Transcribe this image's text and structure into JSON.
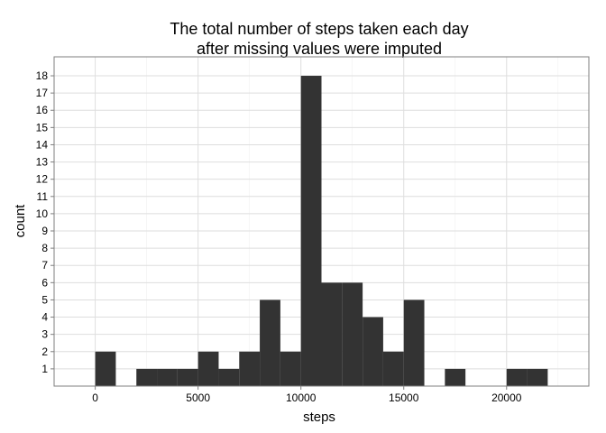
{
  "chart_data": {
    "type": "bar",
    "title": [
      "The total number of steps taken each day",
      "after missing values were imputed"
    ],
    "xlabel": "steps",
    "ylabel": "count",
    "xlim": [
      -2000,
      24000
    ],
    "ylim": [
      0,
      19.1
    ],
    "bin_width": 1000,
    "bins": [
      {
        "x0": 0,
        "count": 2
      },
      {
        "x0": 1000,
        "count": 0
      },
      {
        "x0": 2000,
        "count": 1
      },
      {
        "x0": 3000,
        "count": 1
      },
      {
        "x0": 4000,
        "count": 1
      },
      {
        "x0": 5000,
        "count": 2
      },
      {
        "x0": 6000,
        "count": 1
      },
      {
        "x0": 7000,
        "count": 2
      },
      {
        "x0": 8000,
        "count": 5
      },
      {
        "x0": 9000,
        "count": 2
      },
      {
        "x0": 10000,
        "count": 18
      },
      {
        "x0": 11000,
        "count": 6
      },
      {
        "x0": 12000,
        "count": 6
      },
      {
        "x0": 13000,
        "count": 4
      },
      {
        "x0": 14000,
        "count": 2
      },
      {
        "x0": 15000,
        "count": 5
      },
      {
        "x0": 16000,
        "count": 0
      },
      {
        "x0": 17000,
        "count": 1
      },
      {
        "x0": 18000,
        "count": 0
      },
      {
        "x0": 19000,
        "count": 0
      },
      {
        "x0": 20000,
        "count": 1
      },
      {
        "x0": 21000,
        "count": 1
      }
    ],
    "x_ticks": [
      0,
      5000,
      10000,
      15000,
      20000
    ],
    "x_tick_labels": [
      "0",
      "5000",
      "10000",
      "15000",
      "20000"
    ],
    "y_ticks": [
      1,
      2,
      3,
      4,
      5,
      6,
      7,
      8,
      9,
      10,
      11,
      12,
      13,
      14,
      15,
      16,
      17,
      18
    ],
    "y_tick_labels": [
      "1",
      "2",
      "3",
      "4",
      "5",
      "6",
      "7",
      "8",
      "9",
      "10",
      "11",
      "12",
      "13",
      "14",
      "15",
      "16",
      "17",
      "18"
    ],
    "grid": true,
    "legend": "none",
    "colors": {
      "bar": "#333333",
      "grid_major": "#dedede",
      "grid_minor": "#f0f0f0",
      "panel_border": "#7f7f7f",
      "background": "#ffffff"
    }
  }
}
